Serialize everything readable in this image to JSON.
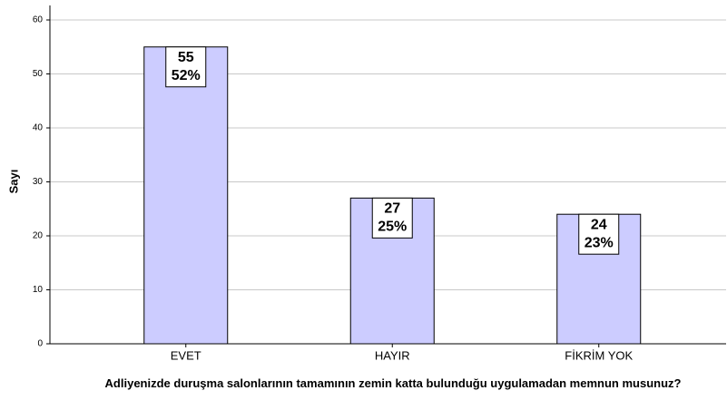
{
  "chart_data": {
    "type": "bar",
    "x_label": "Adliyenizde duruşma salonlarının tamamının zemin katta bulunduğu uygulamadan memnun musunuz?",
    "y_label": "Sayı",
    "categories": [
      "EVET",
      "HAYIR",
      "FİKRİM YOK"
    ],
    "values": [
      55,
      27,
      24
    ],
    "percent_labels": [
      "52%",
      "25%",
      "23%"
    ],
    "color": "#ccccff",
    "ylim": [
      0,
      60
    ],
    "yticks": [
      0,
      10,
      20,
      30,
      40,
      50,
      60
    ],
    "grid": true
  }
}
